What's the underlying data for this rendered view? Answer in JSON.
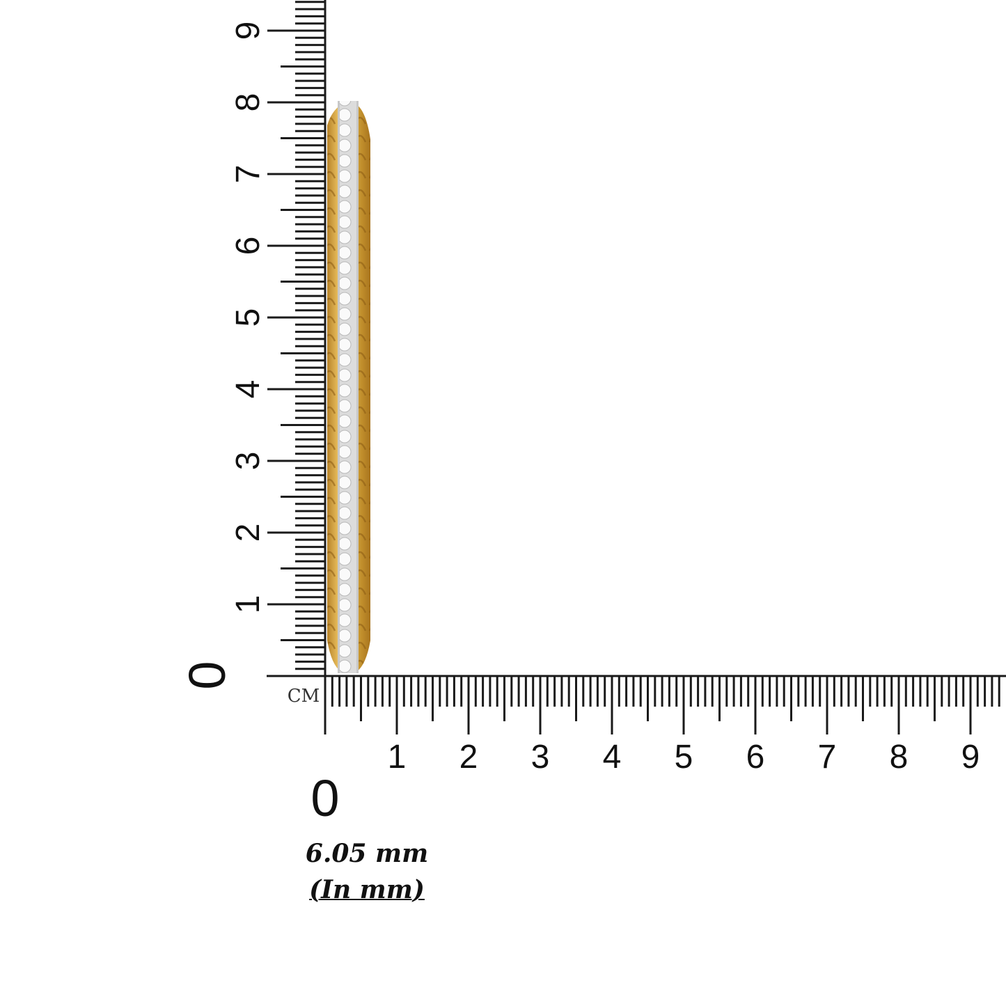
{
  "ruler": {
    "unit_label": "CM",
    "origin_label": "0",
    "horizontal_labels": [
      "1",
      "2",
      "3",
      "4",
      "5",
      "6",
      "7",
      "8",
      "9"
    ],
    "vertical_labels": [
      "1",
      "2",
      "3",
      "4",
      "5",
      "6",
      "7",
      "8",
      "9"
    ],
    "range_cm": [
      0,
      9.5
    ],
    "color": "#1a1a1a"
  },
  "product": {
    "type": "bangle side view",
    "metal_color": "#d9a93a",
    "stone_color": "#eeeeee"
  },
  "caption": {
    "measurement": "6.05 mm",
    "unit_note": "(In mm)"
  }
}
